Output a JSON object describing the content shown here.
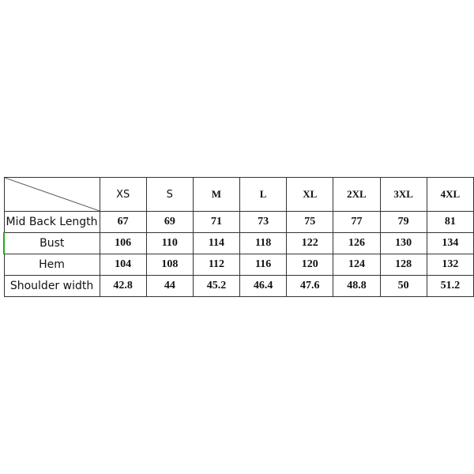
{
  "sizes": [
    "XS",
    "S",
    "M",
    "L",
    "XL",
    "2XL",
    "3XL",
    "4XL"
  ],
  "rows": [
    {
      "label": "Mid Back Length",
      "values": [
        "67",
        "69",
        "71",
        "73",
        "75",
        "77",
        "79",
        "81"
      ]
    },
    {
      "label": "Bust",
      "values": [
        "106",
        "110",
        "114",
        "118",
        "122",
        "126",
        "130",
        "134"
      ]
    },
    {
      "label": "Hem",
      "values": [
        "104",
        "108",
        "112",
        "116",
        "120",
        "124",
        "128",
        "132"
      ]
    },
    {
      "label": "Shoulder width",
      "values": [
        "42.8",
        "44",
        "45.2",
        "46.4",
        "47.6",
        "48.8",
        "50",
        "51.2"
      ]
    }
  ]
}
